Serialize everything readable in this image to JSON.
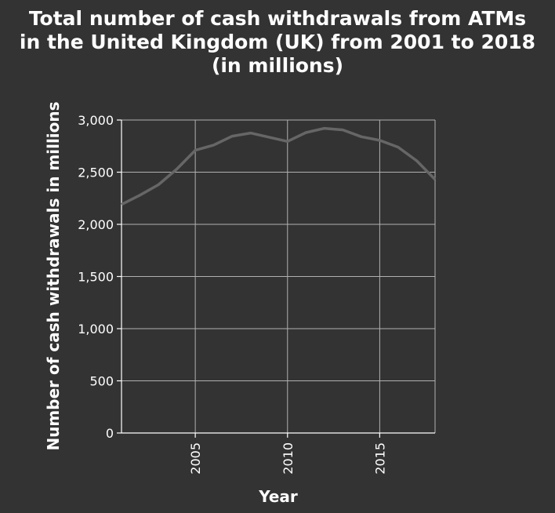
{
  "chart_data": {
    "type": "line",
    "title_lines": [
      "Total number of cash withdrawals from ATMs",
      "in the United Kingdom (UK) from 2001 to 2018",
      "(in millions)"
    ],
    "xlabel": "Year",
    "ylabel": "Number of cash withdrawals in millions",
    "xlim": [
      2001,
      2018
    ],
    "ylim": [
      0,
      3000
    ],
    "x_ticks": [
      2005,
      2010,
      2015
    ],
    "y_ticks": [
      0,
      500,
      1000,
      1500,
      2000,
      2500,
      3000
    ],
    "y_tick_labels": [
      "0",
      "500",
      "1,000",
      "1,500",
      "2,000",
      "2,500",
      "3,000"
    ],
    "grid": true,
    "colors": {
      "background": "#333333",
      "line": "#666666",
      "grid": "#b0b0b0",
      "text": "#ffffff"
    },
    "series": [
      {
        "x": [
          2001,
          2002,
          2003,
          2004,
          2005,
          2006,
          2007,
          2008,
          2009,
          2010,
          2011,
          2012,
          2013,
          2014,
          2015,
          2016,
          2017,
          2018
        ],
        "values": [
          2190,
          2280,
          2380,
          2530,
          2710,
          2760,
          2845,
          2875,
          2835,
          2795,
          2880,
          2920,
          2905,
          2840,
          2805,
          2740,
          2610,
          2430
        ]
      }
    ]
  }
}
